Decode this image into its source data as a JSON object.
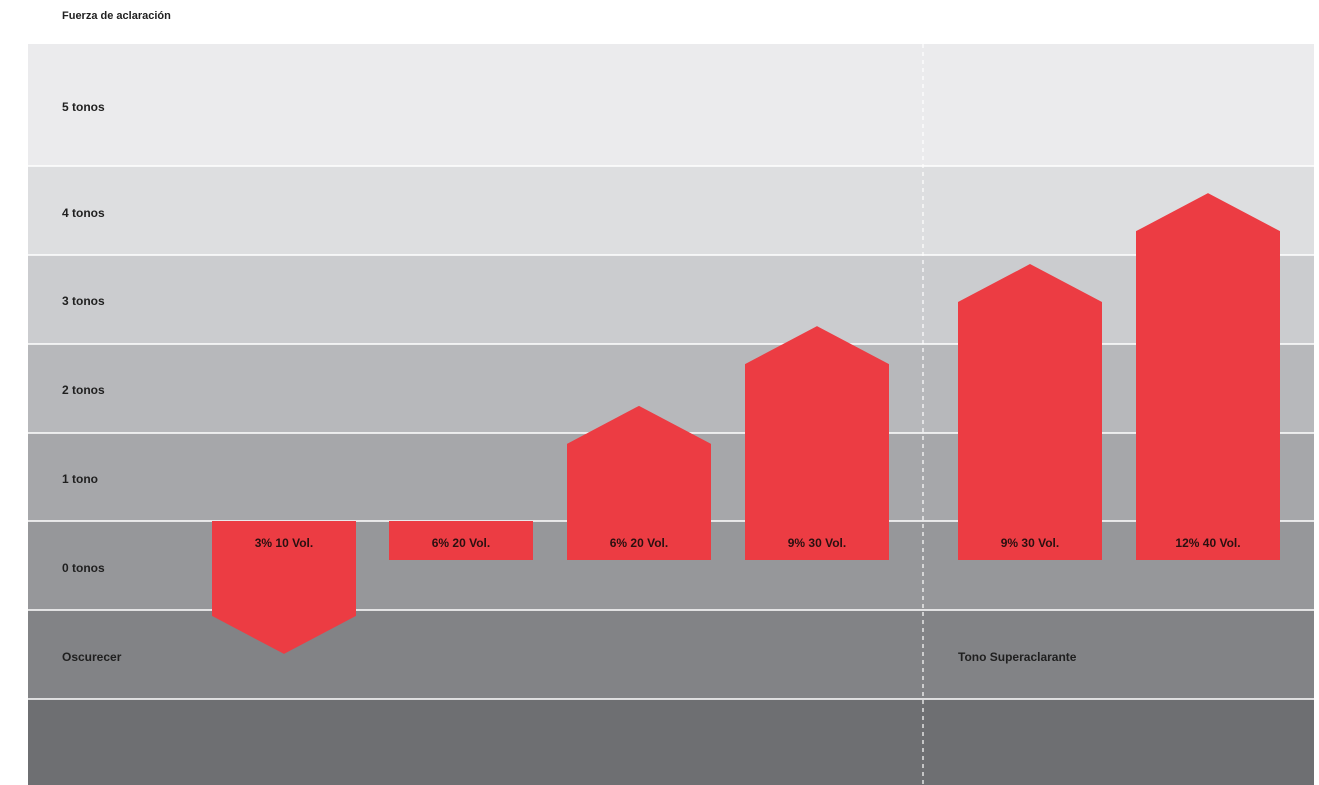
{
  "chart_data": {
    "type": "bar",
    "title": "Fuerza de aclaración",
    "y_levels": [
      "5 tonos",
      "4 tonos",
      "3 tonos",
      "2 tonos",
      "1 tono",
      "0 tonos",
      "Oscurecer"
    ],
    "section_labels": [
      "Tono Superaclarante"
    ],
    "categories": [
      "3% 10 Vol.",
      "6% 20 Vol.",
      "6% 20 Vol.",
      "9% 30 Vol.",
      "9% 30 Vol.",
      "12% 40 Vol."
    ],
    "values": [
      -1.5,
      0,
      1.3,
      2.2,
      2.9,
      3.7
    ],
    "colors": {
      "bar": "#ec3c43",
      "bands": [
        "#ebebed",
        "#dddee0",
        "#cbcccf",
        "#b7b8bb",
        "#a6a7aa",
        "#96979a",
        "#828386",
        "#6e6f72"
      ]
    }
  }
}
